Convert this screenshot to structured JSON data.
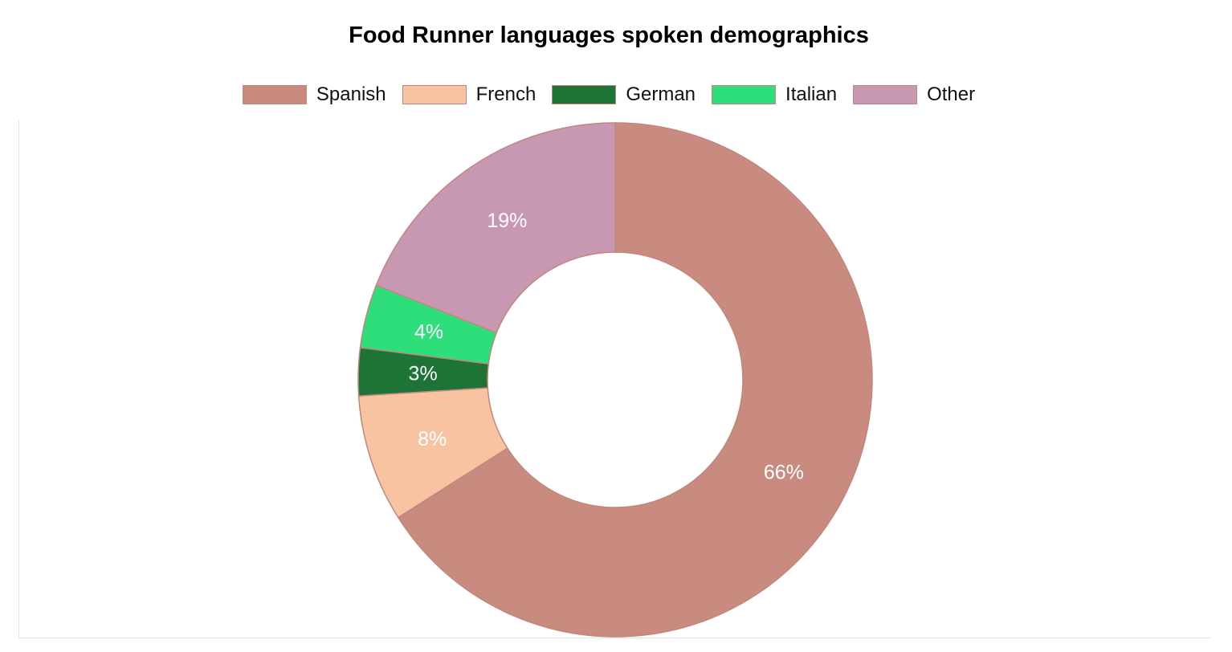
{
  "chart_data": {
    "type": "pie",
    "title": "Food Runner languages spoken demographics",
    "legend_placement": "top",
    "donut": true,
    "categories": [
      "Spanish",
      "French",
      "German",
      "Italian",
      "Other"
    ],
    "values": [
      66,
      8,
      3,
      4,
      19
    ],
    "labels": [
      "66%",
      "8%",
      "3%",
      "4%",
      "19%"
    ],
    "colors": [
      "#c98b80",
      "#f7c3a1",
      "#1e7336",
      "#2ede7a",
      "#c897b1"
    ],
    "border_color": "#c0877d"
  }
}
